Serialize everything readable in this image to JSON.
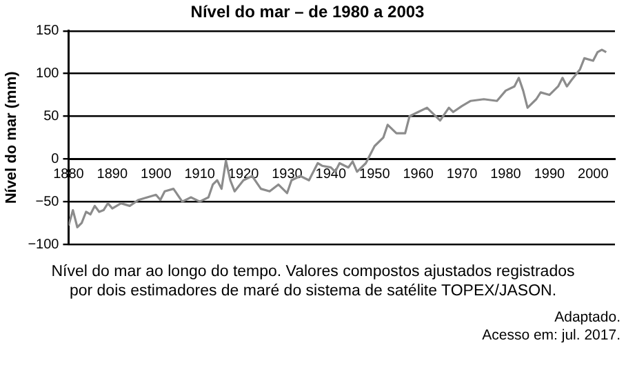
{
  "chart_data": {
    "type": "line",
    "title": "Nível do mar – de 1980 a 2003",
    "ylabel": "Nível do mar (mm)",
    "x": [
      1880,
      1881,
      1882,
      1883,
      1884,
      1885,
      1886,
      1887,
      1888,
      1889,
      1890,
      1892,
      1894,
      1896,
      1898,
      1900,
      1901,
      1902,
      1904,
      1906,
      1908,
      1910,
      1912,
      1913,
      1914,
      1915,
      1916,
      1917,
      1918,
      1920,
      1922,
      1924,
      1926,
      1928,
      1930,
      1931,
      1933,
      1935,
      1937,
      1938,
      1940,
      1941,
      1942,
      1944,
      1945,
      1946,
      1948,
      1950,
      1952,
      1953,
      1955,
      1957,
      1958,
      1960,
      1962,
      1963,
      1965,
      1967,
      1968,
      1970,
      1972,
      1975,
      1978,
      1980,
      1982,
      1983,
      1984,
      1985,
      1987,
      1988,
      1990,
      1992,
      1993,
      1994,
      1995,
      1997,
      1998,
      2000,
      2001,
      2002,
      2003
    ],
    "series": [
      {
        "color": "#8c8c8c",
        "values": [
          -78,
          -60,
          -80,
          -75,
          -62,
          -65,
          -55,
          -62,
          -60,
          -52,
          -58,
          -52,
          -55,
          -48,
          -45,
          -42,
          -48,
          -38,
          -35,
          -50,
          -45,
          -50,
          -45,
          -30,
          -25,
          -35,
          -2,
          -25,
          -38,
          -25,
          -20,
          -35,
          -38,
          -30,
          -40,
          -25,
          -20,
          -25,
          -5,
          -8,
          -10,
          -15,
          -5,
          -10,
          -3,
          -15,
          -5,
          15,
          25,
          40,
          30,
          30,
          50,
          55,
          60,
          55,
          45,
          60,
          55,
          62,
          68,
          70,
          68,
          80,
          85,
          95,
          80,
          60,
          70,
          78,
          75,
          85,
          95,
          85,
          92,
          105,
          118,
          115,
          125,
          128,
          125
        ]
      }
    ],
    "xlim": [
      1880,
      2005
    ],
    "xticks": [
      1880,
      1890,
      1900,
      1910,
      1920,
      1930,
      1940,
      1950,
      1960,
      1970,
      1980,
      1990,
      2000
    ],
    "ylim": [
      -100,
      150
    ],
    "yticks": [
      -100,
      -50,
      0,
      50,
      100,
      150
    ],
    "grid": "y",
    "legend": false,
    "marker": "none",
    "line_style": "solid",
    "annotations": [
      "Nível do mar ao longo do tempo. Valores compostos ajustados registrados por dois estimadores de maré do sistema de satélite TOPEX/JASON.",
      "Adaptado.",
      "Acesso em: jul. 2017."
    ]
  }
}
